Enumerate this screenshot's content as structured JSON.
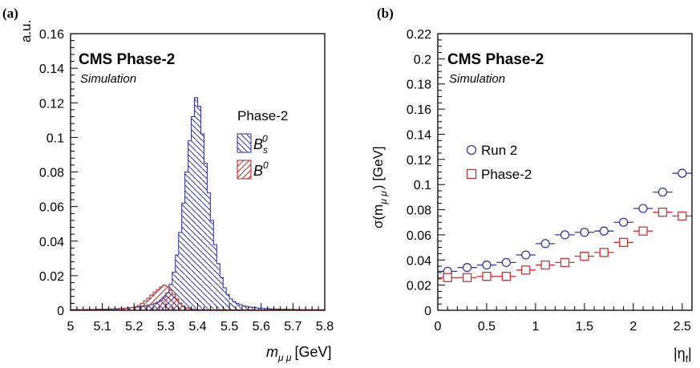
{
  "chart_data": [
    {
      "panel_label": "(a)",
      "type": "histogram",
      "banner": "CMS Phase-2",
      "sub_banner": "Simulation",
      "ylabel": "a.u.",
      "xlabel_main": "m",
      "xlabel_sub": "μ μ",
      "xlabel_unit": "[GeV]",
      "xlim": [
        5.0,
        5.8
      ],
      "ylim": [
        0,
        0.16
      ],
      "xticks": [
        "5",
        "5.1",
        "5.2",
        "5.3",
        "5.4",
        "5.5",
        "5.6",
        "5.7",
        "5.8"
      ],
      "yticks": [
        "0",
        "0.02",
        "0.04",
        "0.06",
        "0.08",
        "0.1",
        "0.12",
        "0.14",
        "0.16"
      ],
      "legend_title": "Phase-2",
      "legend_position": "right",
      "series": [
        {
          "name": "B_s^0",
          "label_main": "B",
          "label_sub": "s",
          "label_sup": "0",
          "color": "#3a3a9e",
          "hatch": "back-diagonal",
          "bin_edges": [
            5.0,
            5.8
          ],
          "values": [
            0.0004,
            0.0004,
            0.0004,
            0.0004,
            0.0004,
            0.0005,
            0.0005,
            0.0005,
            0.0006,
            0.0006,
            0.0006,
            0.0007,
            0.0008,
            0.0008,
            0.0009,
            0.001,
            0.0011,
            0.0012,
            0.0014,
            0.0016,
            0.0018,
            0.002,
            0.0023,
            0.0026,
            0.003,
            0.0034,
            0.004,
            0.0047,
            0.0058,
            0.0075,
            0.01,
            0.015,
            0.022,
            0.032,
            0.045,
            0.062,
            0.08,
            0.098,
            0.112,
            0.123,
            0.118,
            0.102,
            0.085,
            0.068,
            0.052,
            0.038,
            0.027,
            0.019,
            0.013,
            0.009,
            0.0065,
            0.005,
            0.004,
            0.0032,
            0.0026,
            0.0022,
            0.0019,
            0.0016,
            0.0014,
            0.0012,
            0.0011,
            0.001,
            0.0009,
            0.0008,
            0.0007,
            0.0007,
            0.0006,
            0.0006,
            0.0005,
            0.0005,
            0.0005,
            0.0004,
            0.0004,
            0.0004,
            0.0004,
            0.0004,
            0.0003,
            0.0003,
            0.0003,
            0.0003
          ]
        },
        {
          "name": "B^0",
          "label_main": "B",
          "label_sup": "0",
          "color": "#b03030",
          "hatch": "forward-diagonal",
          "bin_edges": [
            5.0,
            5.8
          ],
          "values": [
            0.0003,
            0.0003,
            0.0003,
            0.0003,
            0.0003,
            0.0003,
            0.0004,
            0.0004,
            0.0004,
            0.0005,
            0.0005,
            0.0006,
            0.0006,
            0.0007,
            0.0008,
            0.0009,
            0.001,
            0.0012,
            0.0014,
            0.0016,
            0.002,
            0.0028,
            0.004,
            0.0055,
            0.007,
            0.0088,
            0.0105,
            0.012,
            0.0135,
            0.0145,
            0.0138,
            0.0118,
            0.0092,
            0.0065,
            0.0042,
            0.0025,
            0.0015,
            0.0009,
            0.0006,
            0.0004,
            0.0003,
            0.0003,
            0.0002,
            0.0002,
            0.0002,
            0.0002,
            0.0002,
            0.0002,
            0.0002,
            0.0002,
            0.0002,
            0.0002,
            0.0002,
            0.0002,
            0.0002,
            0.0002,
            0.0002,
            0.0002,
            0.0002,
            0.0002,
            0.0002,
            0.0002,
            0.0002,
            0.0002,
            0.0002,
            0.0002,
            0.0002,
            0.0002,
            0.0002,
            0.0002,
            0.0002,
            0.0002,
            0.0002,
            0.0002,
            0.0002,
            0.0002,
            0.0002,
            0.0002,
            0.0002,
            0.0002
          ]
        }
      ]
    },
    {
      "panel_label": "(b)",
      "type": "scatter",
      "banner": "CMS Phase-2",
      "sub_banner": "Simulation",
      "ylabel_main": "σ(m",
      "ylabel_sub": "μ μ",
      "ylabel_unit": ") [GeV]",
      "xlabel_main": "|η",
      "xlabel_sub": "f",
      "xlabel_end": "|",
      "xlim": [
        0,
        2.6
      ],
      "ylim": [
        0,
        0.22
      ],
      "xticks": [
        "0",
        "0.5",
        "1",
        "1.5",
        "2",
        "2.5"
      ],
      "yticks": [
        "0",
        "0.02",
        "0.04",
        "0.06",
        "0.08",
        "0.1",
        "0.12",
        "0.14",
        "0.16",
        "0.18",
        "0.2",
        "0.22"
      ],
      "legend_position": "left-middle",
      "series": [
        {
          "name": "Run 2",
          "marker": "circle",
          "color": "#3a3a9e",
          "x": [
            0.1,
            0.3,
            0.5,
            0.7,
            0.9,
            1.1,
            1.3,
            1.5,
            1.7,
            1.9,
            2.1,
            2.3,
            2.5
          ],
          "y": [
            0.031,
            0.034,
            0.036,
            0.038,
            0.044,
            0.053,
            0.06,
            0.062,
            0.063,
            0.07,
            0.081,
            0.094,
            0.109
          ],
          "xerr": 0.1
        },
        {
          "name": "Phase-2",
          "marker": "square",
          "color": "#cc3333",
          "x": [
            0.1,
            0.3,
            0.5,
            0.7,
            0.9,
            1.1,
            1.3,
            1.5,
            1.7,
            1.9,
            2.1,
            2.3,
            2.5
          ],
          "y": [
            0.026,
            0.026,
            0.027,
            0.027,
            0.032,
            0.036,
            0.038,
            0.043,
            0.046,
            0.054,
            0.063,
            0.078,
            0.075
          ],
          "xerr": 0.1
        }
      ]
    }
  ]
}
